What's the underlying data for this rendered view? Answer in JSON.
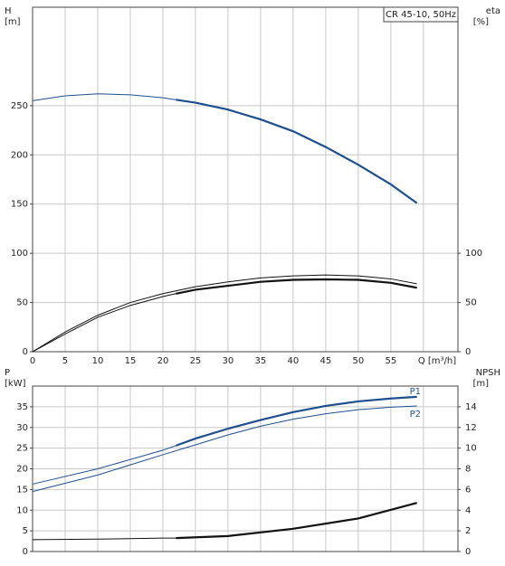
{
  "chart_data": [
    {
      "type": "line",
      "title": "CR 45-10, 50Hz",
      "ylabel": "H",
      "ylabel_unit": "[m]",
      "y2label": "eta",
      "y2label_unit": "[%]",
      "xlim": [
        0,
        65.3
      ],
      "ylim": [
        0,
        350
      ],
      "y2lim": [
        0,
        350
      ],
      "xticks": [
        0,
        5,
        10,
        15,
        20,
        25,
        30,
        35,
        40,
        45,
        50,
        55,
        {
          "value": 60,
          "label": "Q [m³/h]"
        }
      ],
      "yticks": [
        0,
        50,
        100,
        150,
        200,
        250
      ],
      "y2ticks": [
        0,
        50,
        100
      ],
      "grid": true,
      "xtick_labels": true,
      "series": [
        {
          "color": "#1f4f8f",
          "width": 1,
          "x": [
            0,
            5,
            10,
            15,
            20,
            22
          ],
          "values": [
            255,
            260,
            262,
            261,
            258,
            256
          ]
        },
        {
          "color": "#1f4f8f",
          "width": 2.2,
          "x": [
            22,
            25,
            30,
            35,
            40,
            45,
            50,
            55,
            59
          ],
          "values": [
            256,
            253,
            246,
            236,
            224,
            208,
            190,
            170,
            151
          ]
        },
        {
          "color": "#111111",
          "width": 1,
          "axis": "y2",
          "x": [
            0,
            5,
            10,
            15,
            20,
            25,
            30,
            35,
            40,
            45,
            50,
            55,
            59
          ],
          "values": [
            0,
            20,
            37,
            50,
            59,
            66,
            71,
            75,
            77,
            78,
            77,
            74,
            69
          ]
        },
        {
          "color": "#111111",
          "width": 1,
          "axis": "y2",
          "x": [
            0,
            5,
            10,
            15,
            20,
            22
          ],
          "values": [
            0,
            18,
            35,
            47,
            56,
            59
          ]
        },
        {
          "color": "#111111",
          "width": 2.2,
          "axis": "y2",
          "x": [
            22,
            25,
            30,
            35,
            40,
            45,
            50,
            55,
            59
          ],
          "values": [
            59,
            63,
            67,
            71,
            73,
            73.5,
            73,
            70,
            65
          ]
        }
      ]
    },
    {
      "type": "line",
      "ylabel": "P",
      "ylabel_unit": "[kW]",
      "y2label": "NPSH",
      "y2label_unit": "[m]",
      "xlim": [
        0,
        65.3
      ],
      "ylim": [
        0,
        40
      ],
      "y2lim": [
        0,
        16
      ],
      "xticks": [
        0,
        5,
        10,
        15,
        20,
        25,
        30,
        35,
        40,
        45,
        50,
        55,
        60
      ],
      "xtick_labels": false,
      "yticks": [
        0,
        5,
        10,
        15,
        20,
        25,
        30,
        35
      ],
      "y2ticks": [
        0,
        2,
        4,
        6,
        8,
        10,
        12,
        14
      ],
      "grid": true,
      "series": [
        {
          "color": "#1f4f8f",
          "width": 1,
          "x": [
            0,
            10,
            20,
            22
          ],
          "values": [
            16.3,
            20,
            24.5,
            25.6
          ]
        },
        {
          "name": "P1",
          "color": "#1f4f8f",
          "width": 2.2,
          "x": [
            22,
            25,
            30,
            35,
            40,
            45,
            50,
            55,
            59
          ],
          "values": [
            25.6,
            27.3,
            29.7,
            31.8,
            33.7,
            35.2,
            36.3,
            37,
            37.4
          ]
        },
        {
          "name": "P2",
          "color": "#1f4f8f",
          "width": 1,
          "x": [
            0,
            10,
            20,
            25,
            30,
            35,
            40,
            45,
            50,
            55,
            59
          ],
          "values": [
            14.5,
            18.5,
            23.4,
            25.8,
            28.2,
            30.3,
            32,
            33.3,
            34.3,
            34.9,
            35.2
          ]
        },
        {
          "color": "#111111",
          "width": 1,
          "axis": "y2",
          "x": [
            0,
            10,
            20,
            22
          ],
          "values": [
            1.15,
            1.2,
            1.3,
            1.3
          ]
        },
        {
          "color": "#111111",
          "width": 2.2,
          "axis": "y2",
          "x": [
            22,
            30,
            40,
            50,
            59
          ],
          "values": [
            1.3,
            1.5,
            2.2,
            3.2,
            4.7
          ]
        }
      ]
    }
  ]
}
